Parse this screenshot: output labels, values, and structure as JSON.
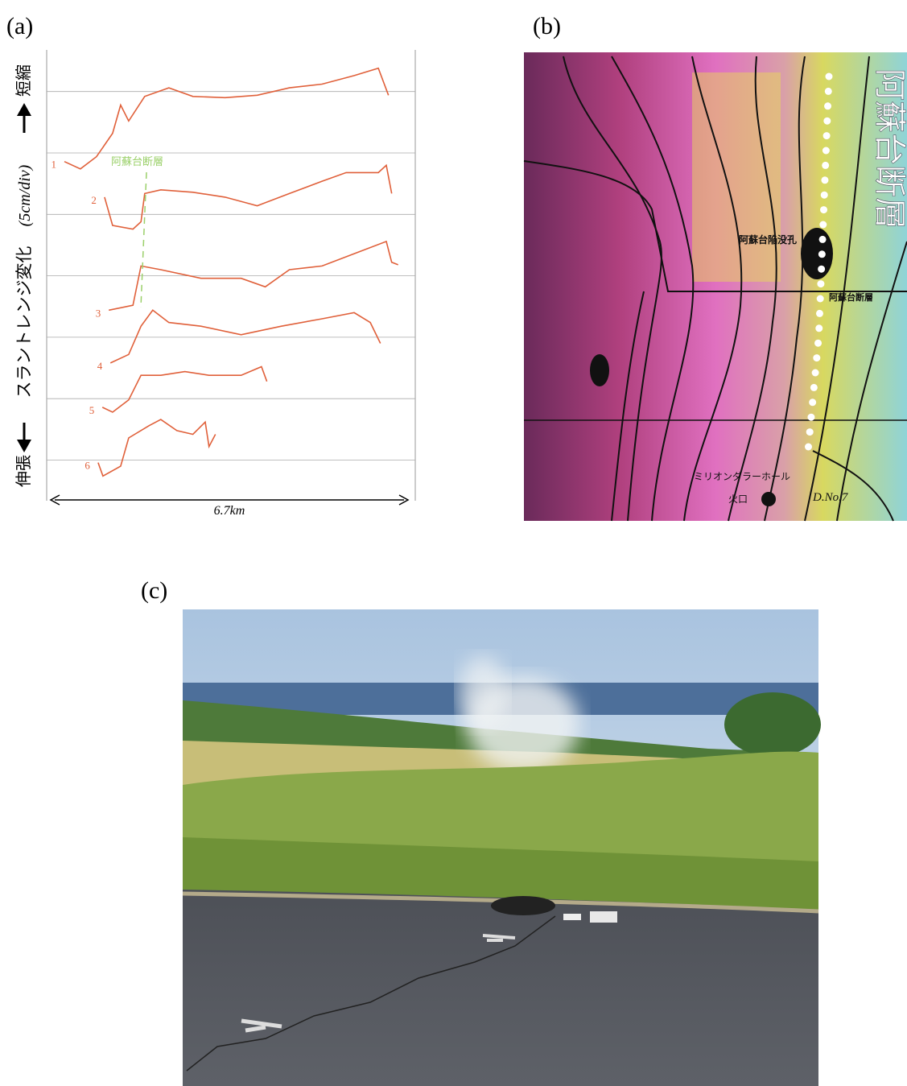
{
  "panel_labels": {
    "a": "(a)",
    "b": "(b)",
    "c": "(c)"
  },
  "chart_data": {
    "type": "line",
    "ylabel": {
      "low": "伸張",
      "main": "スラントレンジ変化",
      "unit": "(5cm/div)",
      "high": "短縮"
    },
    "xlabel": "6.7km",
    "annotation": "阿蘇台断層",
    "xlim": [
      0,
      6.7
    ],
    "color": "#e0603a",
    "series": [
      {
        "name": "1",
        "x": [
          0.27,
          0.57,
          0.87,
          1.17,
          1.32,
          1.47,
          1.77,
          2.22,
          2.67,
          3.27,
          3.87,
          4.47,
          5.08,
          5.68,
          6.13,
          6.32
        ],
        "values": [
          -0.7,
          -1.3,
          -0.3,
          1.6,
          3.9,
          2.6,
          4.6,
          5.3,
          4.6,
          4.5,
          4.7,
          5.3,
          5.6,
          6.3,
          6.9,
          4.7
        ]
      },
      {
        "name": "2",
        "x": [
          1.02,
          1.17,
          1.55,
          1.7,
          1.77,
          2.07,
          2.67,
          3.27,
          3.87,
          4.47,
          5.08,
          5.53,
          6.13,
          6.28,
          6.38
        ],
        "values": [
          1.4,
          -0.9,
          -1.2,
          -0.6,
          1.7,
          2.0,
          1.8,
          1.4,
          0.7,
          1.7,
          2.7,
          3.4,
          3.4,
          4.0,
          1.7
        ]
      },
      {
        "name": "3",
        "x": [
          1.1,
          1.55,
          1.7,
          2.07,
          2.82,
          3.57,
          4.02,
          4.47,
          5.08,
          5.68,
          6.28,
          6.38,
          6.5
        ],
        "values": [
          -2.8,
          -2.4,
          0.8,
          0.5,
          -0.2,
          -0.2,
          -0.9,
          0.5,
          0.8,
          1.8,
          2.8,
          1.1,
          0.9
        ]
      },
      {
        "name": "4",
        "x": [
          1.13,
          1.47,
          1.7,
          1.92,
          2.22,
          2.82,
          3.57,
          4.32,
          5.08,
          5.68,
          5.98,
          6.17
        ],
        "values": [
          -2.1,
          -1.4,
          0.9,
          2.2,
          1.2,
          0.9,
          0.2,
          0.9,
          1.5,
          2.0,
          1.2,
          -0.5
        ]
      },
      {
        "name": "5",
        "x": [
          0.98,
          1.17,
          1.47,
          1.7,
          2.07,
          2.52,
          2.97,
          3.57,
          3.95,
          4.05
        ],
        "values": [
          -0.7,
          -1.1,
          -0.1,
          1.9,
          1.9,
          2.2,
          1.9,
          1.9,
          2.6,
          1.4
        ]
      },
      {
        "name": "6",
        "x": [
          0.9,
          0.99,
          1.32,
          1.47,
          1.85,
          2.07,
          2.37,
          2.67,
          2.9,
          2.97,
          3.09
        ],
        "values": [
          -0.2,
          -1.3,
          -0.5,
          1.8,
          2.8,
          3.3,
          2.4,
          2.1,
          3.1,
          1.1,
          2.1
        ]
      }
    ]
  },
  "map": {
    "fault_label": "阿蘇台断層",
    "pit_label": "阿蘇台陥没孔",
    "hole_label": "ミリオンダラーホール",
    "crater_label": "火口",
    "well_label": "D.No.7"
  }
}
